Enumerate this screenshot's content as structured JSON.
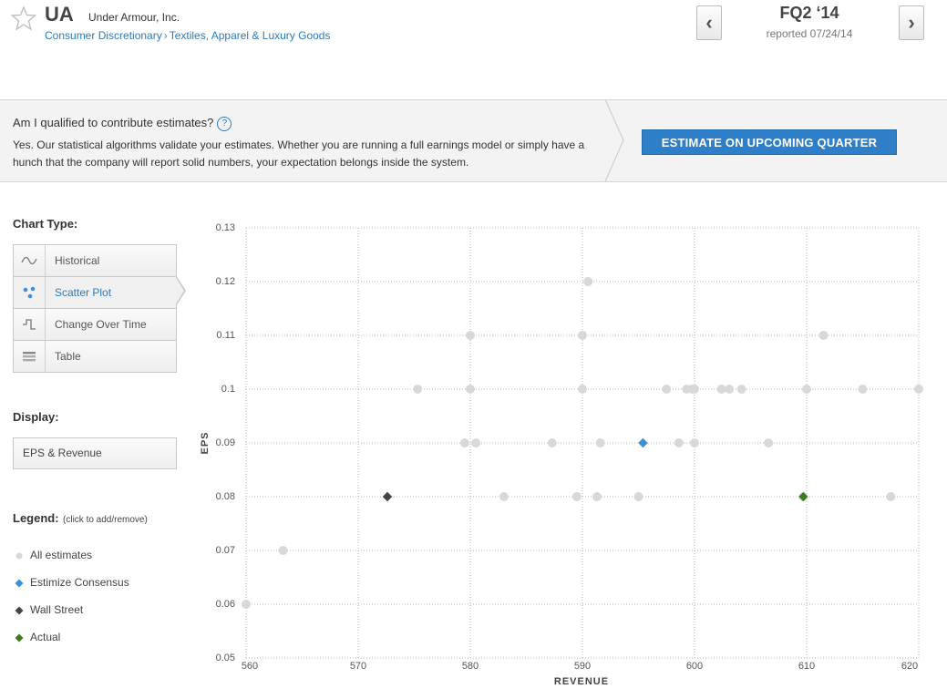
{
  "header": {
    "ticker": "UA",
    "company": "Under Armour, Inc.",
    "sector": "Consumer Discretionary",
    "sep": "›",
    "industry": "Textiles, Apparel & Luxury Goods",
    "quarter": "FQ2 ‘14",
    "reported": "reported 07/24/14",
    "prev_label": "‹",
    "next_label": "›"
  },
  "banner": {
    "question": "Am I qualified to contribute estimates?",
    "help": "?",
    "answer": "Yes. Our statistical algorithms validate your estimates. Whether you are running a full earnings model or simply have a hunch that the company will report solid numbers, your expectation belongs inside the system.",
    "cta": "ESTIMATE ON UPCOMING QUARTER"
  },
  "sidebar": {
    "chart_type_label": "Chart Type:",
    "chart_types": [
      "Historical",
      "Scatter Plot",
      "Change Over Time",
      "Table"
    ],
    "active_type": "Scatter Plot",
    "display_label": "Display:",
    "display_value": "EPS & Revenue",
    "legend_label": "Legend:",
    "legend_hint": "(click to add/remove)",
    "legend": [
      {
        "label": "All estimates",
        "color": "#d8d8d8",
        "shape": "circle"
      },
      {
        "label": "Estimize Consensus",
        "color": "#3d8fd6",
        "shape": "diamond"
      },
      {
        "label": "Wall Street",
        "color": "#444444",
        "shape": "diamond"
      },
      {
        "label": "Actual",
        "color": "#3e7a1e",
        "shape": "diamond"
      }
    ]
  },
  "chart_data": {
    "type": "scatter",
    "xlabel": "REVENUE",
    "ylabel": "EPS",
    "xlim": [
      560,
      620
    ],
    "ylim": [
      0.05,
      0.13
    ],
    "xticks": [
      560,
      570,
      580,
      590,
      600,
      610,
      620
    ],
    "yticks": [
      0.05,
      0.06,
      0.07,
      0.08,
      0.09,
      0.1,
      0.11,
      0.12,
      0.13
    ],
    "grid": true,
    "series": [
      {
        "name": "All estimates",
        "color": "#d8d8d8",
        "shape": "circle",
        "points": [
          [
            560,
            0.06
          ],
          [
            563.3,
            0.07
          ],
          [
            575.3,
            0.1
          ],
          [
            580,
            0.1
          ],
          [
            580,
            0.11
          ],
          [
            579.5,
            0.09
          ],
          [
            580.5,
            0.09
          ],
          [
            583,
            0.08
          ],
          [
            587.3,
            0.09
          ],
          [
            589.5,
            0.08
          ],
          [
            590,
            0.1
          ],
          [
            590,
            0.11
          ],
          [
            590.5,
            0.12
          ],
          [
            591.3,
            0.08
          ],
          [
            591.6,
            0.09
          ],
          [
            595,
            0.08
          ],
          [
            597.5,
            0.1
          ],
          [
            598.6,
            0.09
          ],
          [
            599.3,
            0.1
          ],
          [
            599.8,
            0.1
          ],
          [
            600,
            0.09
          ],
          [
            600,
            0.1
          ],
          [
            602.4,
            0.1
          ],
          [
            603.1,
            0.1
          ],
          [
            604.2,
            0.1
          ],
          [
            606.6,
            0.09
          ],
          [
            609.7,
            0.08
          ],
          [
            610,
            0.1
          ],
          [
            611.5,
            0.11
          ],
          [
            615,
            0.1
          ],
          [
            617.5,
            0.08
          ],
          [
            620,
            0.1
          ]
        ]
      },
      {
        "name": "Estimize Consensus",
        "color": "#3d8fd6",
        "shape": "diamond",
        "points": [
          [
            595.4,
            0.09
          ]
        ]
      },
      {
        "name": "Wall Street",
        "color": "#444444",
        "shape": "diamond",
        "points": [
          [
            572.6,
            0.08
          ]
        ]
      },
      {
        "name": "Actual",
        "color": "#3e7a1e",
        "shape": "diamond",
        "points": [
          [
            609.7,
            0.08
          ]
        ]
      }
    ]
  }
}
